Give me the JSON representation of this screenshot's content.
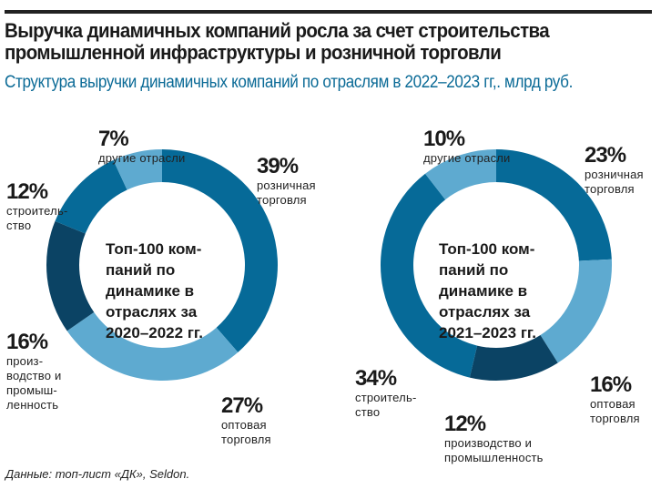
{
  "title": "Выручка динамичных компаний росла за счет строительства промышленной инфраструктуры и розничной торговли",
  "subtitle": "Структура выручки динамичных компаний по отраслям в 2022–2023 гг,. млрд руб.",
  "source": "Данные: топ-лист «ДК», Seldon.",
  "colors": {
    "mid": "#066a98",
    "light": "#5eaad0",
    "dark": "#0b4364"
  },
  "chart_data": [
    {
      "type": "pie",
      "title": "Топ-100 компаний по динамике в отраслях за 2020–2022 гг.",
      "center_lines": [
        "Топ-100 ком-",
        "паний по",
        "динамике в",
        "отраслях за",
        "2020–2022 гг."
      ],
      "slices": [
        {
          "label": "розничная торговля",
          "value": 39,
          "pct": "39%",
          "color": "#066a98"
        },
        {
          "label": "оптовая торговля",
          "value": 27,
          "pct": "27%",
          "color": "#5eaad0"
        },
        {
          "label": "производство и промышленность",
          "value": 16,
          "pct": "16%",
          "color": "#0b4364"
        },
        {
          "label": "строительство",
          "value": 12,
          "pct": "12%",
          "color": "#066a98"
        },
        {
          "label": "другие отрасли",
          "value": 7,
          "pct": "7%",
          "color": "#5eaad0"
        }
      ],
      "label_lines": [
        "розничная\nторговля",
        "оптовая\nторговля",
        "произ-\nводство и\nпромыш-\nленность",
        "строитель-\nство",
        "другие отрасли"
      ]
    },
    {
      "type": "pie",
      "title": "Топ-100 компаний по динамике в отраслях за 2021–2023 гг.",
      "center_lines": [
        "Топ-100 ком-",
        "паний по",
        "динамике в",
        "отраслях за",
        "2021–2023 гг."
      ],
      "slices": [
        {
          "label": "розничная торговля",
          "value": 23,
          "pct": "23%",
          "color": "#066a98"
        },
        {
          "label": "оптовая торговля",
          "value": 16,
          "pct": "16%",
          "color": "#5eaad0"
        },
        {
          "label": "производство и промышленность",
          "value": 12,
          "pct": "12%",
          "color": "#0b4364"
        },
        {
          "label": "строительство",
          "value": 34,
          "pct": "34%",
          "color": "#066a98"
        },
        {
          "label": "другие отрасли",
          "value": 10,
          "pct": "10%",
          "color": "#5eaad0"
        }
      ],
      "label_lines": [
        "розничная\nторговля",
        "оптовая\nторговля",
        "производство и\nпромышленность",
        "строитель-\nство",
        "другие отрасли"
      ]
    }
  ]
}
